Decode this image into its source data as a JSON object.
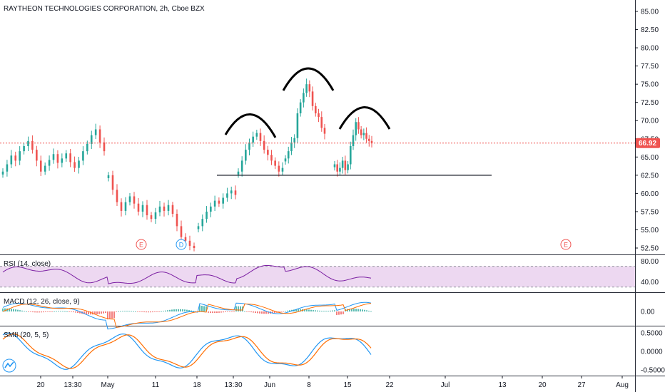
{
  "header": {
    "title": "RAYTHEON TECHNOLOGIES CORPORATION, 2h, Cboe BZX"
  },
  "colors": {
    "up": "#26a69a",
    "down": "#ef5350",
    "rsi": "#7b1fa2",
    "rsi_band": "#e1bee7",
    "macd_line": "#2196f3",
    "signal_line": "#ff6d00",
    "smii_line": "#2196f3",
    "smii_signal": "#ff6d00",
    "last_price": "#ef5350"
  },
  "chart_data": [
    {
      "type": "candlestick",
      "title": "RAYTHEON TECHNOLOGIES CORPORATION, 2h, Cboe BZX",
      "last_price": 66.92,
      "last_price_label": "66.92",
      "ylim": [
        51.5,
        86
      ],
      "y_ticks": [
        "85.00",
        "82.50",
        "80.00",
        "77.50",
        "75.00",
        "72.50",
        "70.00",
        "67.50",
        "65.00",
        "62.50",
        "60.00",
        "57.50",
        "55.00",
        "52.50"
      ],
      "neckline_level": 62.5,
      "pattern": "head and shoulders",
      "series": [
        {
          "segment": "mid-apr",
          "closes": [
            63.0,
            64.0,
            65.2,
            64.5,
            65.8,
            66.5,
            67.2,
            66.0,
            64.5,
            63.0,
            63.8,
            64.6,
            65.4,
            64.2,
            64.8,
            65.5,
            64.3,
            63.5,
            64.5,
            65.8,
            66.8,
            68.0,
            68.8,
            67.0,
            65.8
          ]
        },
        {
          "segment": "may",
          "closes": [
            62.5,
            60.5,
            58.8,
            57.6,
            58.8,
            59.6,
            58.6,
            57.5,
            58.4,
            57.0,
            56.5,
            57.4,
            58.2,
            57.6,
            58.4,
            57.2,
            55.5,
            54.0,
            53.5,
            52.8,
            52.5
          ]
        },
        {
          "segment": "late-may",
          "closes": [
            55.5,
            56.5,
            57.5,
            58.2,
            59.0,
            58.6,
            59.4,
            60.0,
            60.4,
            59.8
          ]
        },
        {
          "segment": "left-shoulder",
          "closes": [
            63.0,
            64.5,
            66.0,
            67.0,
            67.8,
            68.3,
            67.2,
            66.0,
            65.3,
            64.5,
            63.8,
            63.0,
            63.5
          ]
        },
        {
          "segment": "head",
          "closes": [
            64.8,
            65.8,
            67.0,
            67.6,
            71.0,
            72.5,
            73.8,
            75.0,
            74.0,
            72.0,
            71.0,
            70.5,
            69.0,
            68.2
          ]
        },
        {
          "segment": "right-shoulder",
          "closes": [
            64.0,
            63.0,
            63.5,
            64.5,
            63.2,
            64.0,
            66.5,
            68.0,
            69.8,
            68.8,
            68.0,
            68.3,
            67.5,
            67.2,
            66.92
          ]
        }
      ]
    },
    {
      "type": "line",
      "title": "RSI (14, close)",
      "ylim": [
        20,
        90
      ],
      "band": [
        30,
        70
      ],
      "y_ticks": [
        "80.00",
        "40.00"
      ]
    },
    {
      "type": "histogram+line",
      "title": "MACD (12, 26, close, 9)",
      "y_ticks": [
        "0.00"
      ]
    },
    {
      "type": "line",
      "title": "SMII (20, 5, 5)",
      "ylim": [
        -0.55,
        0.55
      ],
      "y_ticks": [
        "0.5000",
        "0.0000",
        "-0.5000"
      ]
    }
  ],
  "x_axis": {
    "labels": [
      "20",
      "13:30",
      "May",
      "11",
      "18",
      "13:30",
      "Jun",
      "8",
      "15",
      "22",
      "Jul",
      "13",
      "20",
      "27",
      "Aug"
    ]
  },
  "events": [
    "E",
    "D",
    "E"
  ]
}
